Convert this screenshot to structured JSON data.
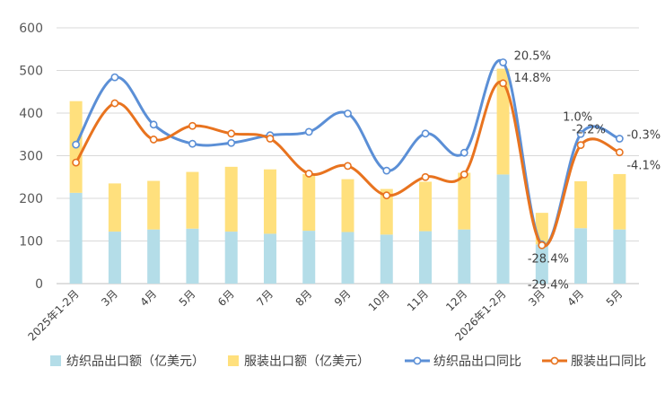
{
  "chart_data": {
    "type": "bar",
    "categories": [
      "2025年1-2月",
      "3月",
      "4月",
      "5月",
      "6月",
      "7月",
      "8月",
      "9月",
      "10月",
      "11月",
      "12月",
      "2026年1-2月",
      "3月",
      "4月",
      "5月"
    ],
    "ylim": [
      0,
      600
    ],
    "yticks": [
      0,
      100,
      200,
      300,
      400,
      500,
      600
    ],
    "grid": true,
    "legend_position": "bottom",
    "series": [
      {
        "name": "纺织品出口额（亿美元）",
        "kind": "bar",
        "color": "#b4dde8",
        "values": [
          213,
          122,
          127,
          129,
          122,
          117,
          124,
          121,
          115,
          123,
          127,
          256,
          92,
          130,
          127
        ]
      },
      {
        "name": "服装出口额（亿美元）",
        "kind": "bar",
        "color": "#ffe07d",
        "values": [
          215,
          113,
          114,
          133,
          152,
          151,
          133,
          124,
          107,
          116,
          133,
          248,
          74,
          110,
          130
        ]
      },
      {
        "name": "纺织品出口同比",
        "kind": "line",
        "color": "#5b8fd6",
        "values": [
          326,
          484,
          373,
          328,
          330,
          348,
          356,
          399,
          265,
          352,
          307,
          519,
          92,
          351,
          340
        ]
      },
      {
        "name": "服装出口同比",
        "kind": "line",
        "color": "#e8731f",
        "values": [
          284,
          423,
          338,
          370,
          352,
          340,
          258,
          276,
          207,
          250,
          256,
          470,
          90,
          325,
          308
        ]
      }
    ],
    "annotations": [
      {
        "text": "20.5%",
        "index": 11,
        "series": 2
      },
      {
        "text": "14.8%",
        "index": 11,
        "series": 3
      },
      {
        "text": "-28.4%",
        "index": 12,
        "series": 2
      },
      {
        "text": "-29.4%",
        "index": 12,
        "series": 3
      },
      {
        "text": "1.0%",
        "index": 13,
        "series": 2
      },
      {
        "text": "-2.2%",
        "index": 13,
        "series": 3
      },
      {
        "text": "-0.3%",
        "index": 14,
        "series": 2
      },
      {
        "text": "-4.1%",
        "index": 14,
        "series": 3
      }
    ]
  }
}
